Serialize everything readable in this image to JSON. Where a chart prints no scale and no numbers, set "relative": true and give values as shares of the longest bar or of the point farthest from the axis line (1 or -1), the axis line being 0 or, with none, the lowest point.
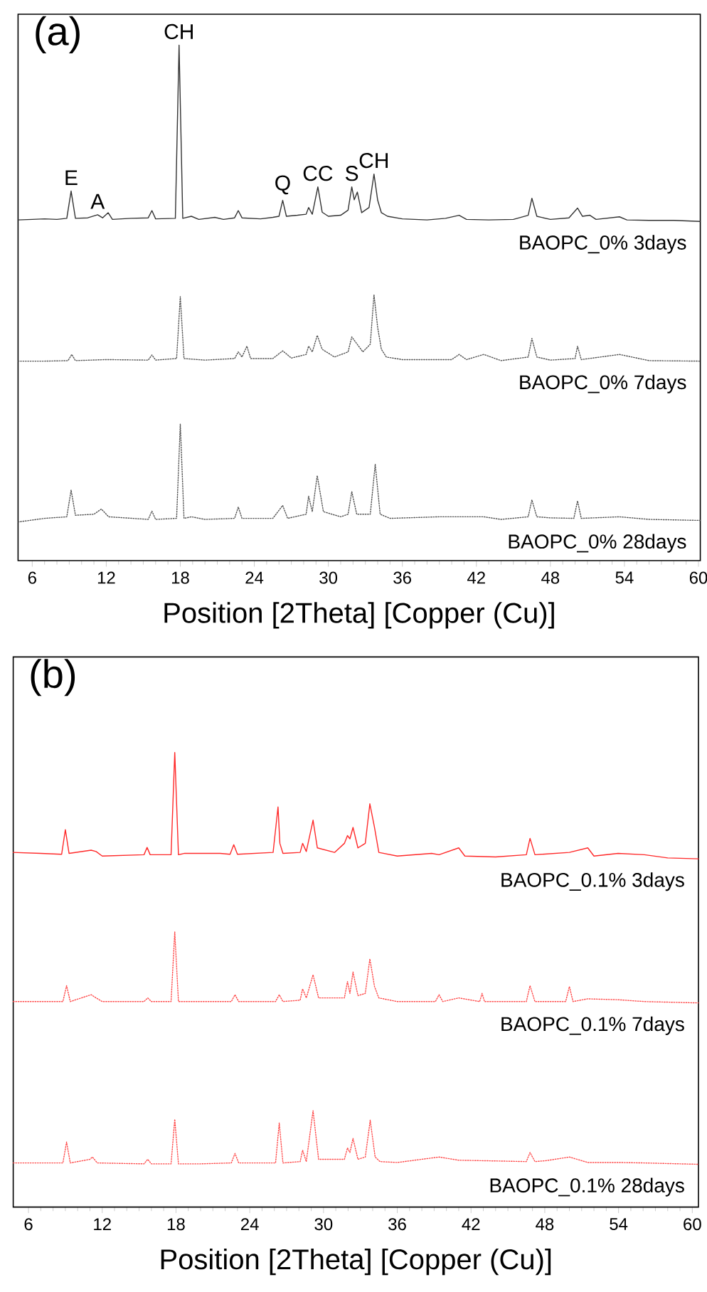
{
  "chart_data": [
    {
      "type": "line",
      "title": "(a)",
      "xlabel": "Position [2Theta] [Copper (Cu)]",
      "xlim": [
        4.85,
        60.15
      ],
      "xticks": [
        6,
        12,
        18,
        24,
        30,
        36,
        42,
        48,
        54,
        60
      ],
      "relative": true,
      "annotations": [
        {
          "text": "E",
          "x": 9.15,
          "y": 0.717
        },
        {
          "text": "A",
          "x": 11.3,
          "y": 0.671
        },
        {
          "text": "CH",
          "x": 17.9,
          "y": 1.0
        },
        {
          "text": "Q",
          "x": 26.3,
          "y": 0.699
        },
        {
          "text": "CC",
          "x": 29.15,
          "y": 0.725
        },
        {
          "text": "S",
          "x": 31.9,
          "y": 0.725
        },
        {
          "text": "CH",
          "x": 33.7,
          "y": 0.75
        }
      ],
      "series": [
        {
          "name": "BAOPC_0% 3days",
          "color": "#333333",
          "line_style": "solid",
          "x": [
            4.85,
            6,
            7,
            8,
            8.8,
            9.15,
            9.5,
            10.5,
            11.3,
            11.7,
            12.15,
            12.5,
            14,
            15.4,
            15.7,
            16,
            17.6,
            17.9,
            18.2,
            18.9,
            19.5,
            20.8,
            21.5,
            22.4,
            22.7,
            23,
            24.5,
            25.5,
            26,
            26.3,
            26.6,
            27.5,
            28.2,
            28.4,
            28.7,
            29.15,
            29.5,
            30,
            31,
            31.6,
            31.9,
            32.1,
            32.35,
            32.7,
            33.3,
            33.7,
            34.0,
            34.3,
            34.8,
            36,
            38,
            39.5,
            40.6,
            41.2,
            43,
            45,
            46.2,
            46.5,
            46.9,
            48,
            49.5,
            50.2,
            50.6,
            51.2,
            51.7,
            53.6,
            54.2,
            56,
            58,
            60.15
          ],
          "values": [
            0.661,
            0.662,
            0.663,
            0.662,
            0.664,
            0.717,
            0.664,
            0.665,
            0.671,
            0.665,
            0.675,
            0.662,
            0.664,
            0.665,
            0.679,
            0.663,
            0.664,
            1.0,
            0.664,
            0.668,
            0.662,
            0.666,
            0.662,
            0.665,
            0.679,
            0.665,
            0.663,
            0.666,
            0.668,
            0.699,
            0.668,
            0.67,
            0.672,
            0.685,
            0.672,
            0.725,
            0.676,
            0.668,
            0.67,
            0.68,
            0.725,
            0.7,
            0.715,
            0.675,
            0.685,
            0.75,
            0.699,
            0.675,
            0.668,
            0.663,
            0.661,
            0.664,
            0.67,
            0.662,
            0.661,
            0.662,
            0.67,
            0.703,
            0.668,
            0.662,
            0.665,
            0.684,
            0.668,
            0.67,
            0.662,
            0.667,
            0.661,
            0.66,
            0.66,
            0.658
          ]
        },
        {
          "name": "BAOPC_0% 7days",
          "color": "#555555",
          "line_style": "dotted",
          "x": [
            4.85,
            7,
            8.9,
            9.2,
            9.5,
            12,
            15.4,
            15.7,
            16,
            17.7,
            18.0,
            18.3,
            20,
            22.4,
            22.7,
            23.0,
            23.4,
            23.7,
            25.5,
            26.3,
            27,
            28.2,
            28.4,
            28.7,
            29.1,
            29.5,
            30.5,
            31.6,
            31.9,
            32.3,
            32.8,
            33.4,
            33.7,
            34.0,
            34.3,
            34.7,
            36,
            40,
            40.6,
            41.2,
            42.6,
            44,
            46.2,
            46.5,
            46.9,
            48,
            50.0,
            50.2,
            50.5,
            53.6,
            56,
            60.15
          ],
          "values": [
            0.387,
            0.387,
            0.388,
            0.4,
            0.388,
            0.39,
            0.389,
            0.399,
            0.389,
            0.392,
            0.512,
            0.392,
            0.389,
            0.392,
            0.405,
            0.395,
            0.416,
            0.392,
            0.392,
            0.407,
            0.393,
            0.4,
            0.416,
            0.405,
            0.437,
            0.41,
            0.395,
            0.405,
            0.434,
            0.421,
            0.405,
            0.42,
            0.516,
            0.452,
            0.41,
            0.395,
            0.39,
            0.39,
            0.4,
            0.39,
            0.4,
            0.388,
            0.395,
            0.431,
            0.395,
            0.389,
            0.392,
            0.416,
            0.39,
            0.4,
            0.388,
            0.387
          ]
        },
        {
          "name": "BAOPC_0% 28days",
          "color": "#555555",
          "line_style": "dotted",
          "x": [
            4.85,
            7,
            8.8,
            9.15,
            9.5,
            11,
            11.6,
            12.2,
            15.4,
            15.7,
            16,
            17.7,
            18.0,
            18.3,
            18.9,
            20,
            22.4,
            22.7,
            23,
            25.5,
            26.3,
            26.7,
            28.2,
            28.4,
            28.7,
            29.1,
            29.6,
            31,
            31.6,
            31.9,
            32.3,
            33.4,
            33.8,
            34.2,
            35,
            38.95,
            40.6,
            42.6,
            44,
            46.2,
            46.5,
            46.9,
            48.0,
            49.9,
            50.2,
            50.5,
            53.6,
            56,
            60.15
          ],
          "values": [
            0.075,
            0.082,
            0.085,
            0.137,
            0.088,
            0.09,
            0.1,
            0.085,
            0.08,
            0.096,
            0.08,
            0.082,
            0.265,
            0.082,
            0.085,
            0.08,
            0.082,
            0.104,
            0.082,
            0.082,
            0.107,
            0.082,
            0.09,
            0.125,
            0.095,
            0.165,
            0.095,
            0.085,
            0.09,
            0.134,
            0.09,
            0.09,
            0.187,
            0.09,
            0.082,
            0.085,
            0.085,
            0.085,
            0.08,
            0.085,
            0.118,
            0.085,
            0.083,
            0.082,
            0.116,
            0.082,
            0.085,
            0.08,
            0.078
          ]
        }
      ]
    },
    {
      "type": "line",
      "title": "(b)",
      "xlabel": "Position [2Theta] [Copper (Cu)]",
      "xlim": [
        4.76,
        60.5
      ],
      "xticks": [
        6,
        12,
        18,
        24,
        30,
        36,
        42,
        48,
        54,
        60
      ],
      "relative": true,
      "series": [
        {
          "name": "BAOPC_0.1% 3days",
          "color": "#ff2a2a",
          "line_style": "solid",
          "x": [
            4.76,
            7,
            8.7,
            9.0,
            9.3,
            11.1,
            11.5,
            12,
            15.4,
            15.65,
            15.9,
            17.6,
            17.9,
            18.2,
            18.7,
            20.6,
            21.6,
            22.4,
            22.7,
            23,
            25.9,
            26.3,
            26.45,
            26.7,
            28.1,
            28.3,
            28.6,
            29.15,
            29.5,
            30.9,
            31.7,
            31.95,
            32.15,
            32.4,
            32.8,
            33.4,
            33.77,
            34.15,
            34.5,
            36,
            38.8,
            39.4,
            41.0,
            41.5,
            44,
            46.5,
            46.8,
            47.2,
            50.0,
            51.5,
            52,
            53.96,
            56.1,
            58,
            60.5
          ],
          "values": [
            0.78,
            0.778,
            0.776,
            0.83,
            0.778,
            0.785,
            0.782,
            0.772,
            0.775,
            0.791,
            0.775,
            0.775,
            1.0,
            0.775,
            0.778,
            0.778,
            0.778,
            0.776,
            0.797,
            0.776,
            0.78,
            0.88,
            0.8,
            0.778,
            0.78,
            0.8,
            0.782,
            0.851,
            0.79,
            0.78,
            0.8,
            0.817,
            0.81,
            0.835,
            0.79,
            0.8,
            0.887,
            0.835,
            0.78,
            0.772,
            0.778,
            0.775,
            0.79,
            0.772,
            0.77,
            0.775,
            0.811,
            0.775,
            0.78,
            0.79,
            0.772,
            0.778,
            0.775,
            0.768,
            0.766
          ]
        },
        {
          "name": "BAOPC_0.1% 7days",
          "color": "#ff4d4d",
          "line_style": "dotted",
          "x": [
            4.76,
            7,
            8.8,
            9.1,
            9.4,
            11.1,
            11.5,
            12,
            15.4,
            15.7,
            16,
            17.6,
            17.9,
            18.2,
            20,
            22.5,
            22.8,
            23.1,
            26.1,
            26.4,
            26.7,
            28.1,
            28.3,
            28.6,
            29.15,
            29.6,
            31.7,
            31.95,
            32.15,
            32.4,
            32.8,
            33.4,
            33.77,
            34.15,
            34.5,
            36,
            39.1,
            39.4,
            39.7,
            41.0,
            42.7,
            42.9,
            43.1,
            46.5,
            46.8,
            47.2,
            49.7,
            50.0,
            50.3,
            51.5,
            53.96,
            56.1,
            60.5
          ],
          "values": [
            0.452,
            0.452,
            0.452,
            0.487,
            0.452,
            0.467,
            0.46,
            0.452,
            0.452,
            0.46,
            0.452,
            0.452,
            0.605,
            0.452,
            0.452,
            0.452,
            0.467,
            0.452,
            0.452,
            0.467,
            0.452,
            0.455,
            0.48,
            0.46,
            0.511,
            0.46,
            0.46,
            0.496,
            0.47,
            0.517,
            0.465,
            0.47,
            0.546,
            0.485,
            0.46,
            0.452,
            0.452,
            0.467,
            0.452,
            0.46,
            0.452,
            0.47,
            0.452,
            0.452,
            0.487,
            0.452,
            0.452,
            0.485,
            0.452,
            0.458,
            0.456,
            0.452,
            0.449
          ]
        },
        {
          "name": "BAOPC_0.1% 28days",
          "color": "#ff4d4d",
          "line_style": "dotted",
          "x": [
            4.76,
            7,
            8.8,
            9.1,
            9.4,
            11.0,
            11.2,
            11.6,
            15.4,
            15.7,
            16,
            17.6,
            17.9,
            18.2,
            20,
            22.5,
            22.8,
            23.1,
            26.1,
            26.4,
            26.7,
            28.1,
            28.3,
            28.6,
            29.15,
            29.6,
            31.7,
            31.95,
            32.15,
            32.4,
            32.8,
            33.4,
            33.8,
            34.2,
            34.6,
            36,
            39.4,
            41.0,
            42.9,
            46.5,
            46.8,
            47.2,
            48.1,
            50.0,
            51.5,
            53.96,
            56.1,
            60.5
          ],
          "values": [
            0.097,
            0.097,
            0.097,
            0.143,
            0.097,
            0.105,
            0.11,
            0.097,
            0.095,
            0.105,
            0.095,
            0.095,
            0.193,
            0.095,
            0.095,
            0.097,
            0.118,
            0.097,
            0.097,
            0.185,
            0.097,
            0.1,
            0.125,
            0.1,
            0.212,
            0.105,
            0.105,
            0.13,
            0.12,
            0.151,
            0.105,
            0.11,
            0.191,
            0.11,
            0.1,
            0.098,
            0.11,
            0.103,
            0.102,
            0.1,
            0.12,
            0.1,
            0.102,
            0.11,
            0.098,
            0.098,
            0.097,
            0.094
          ]
        }
      ]
    }
  ]
}
